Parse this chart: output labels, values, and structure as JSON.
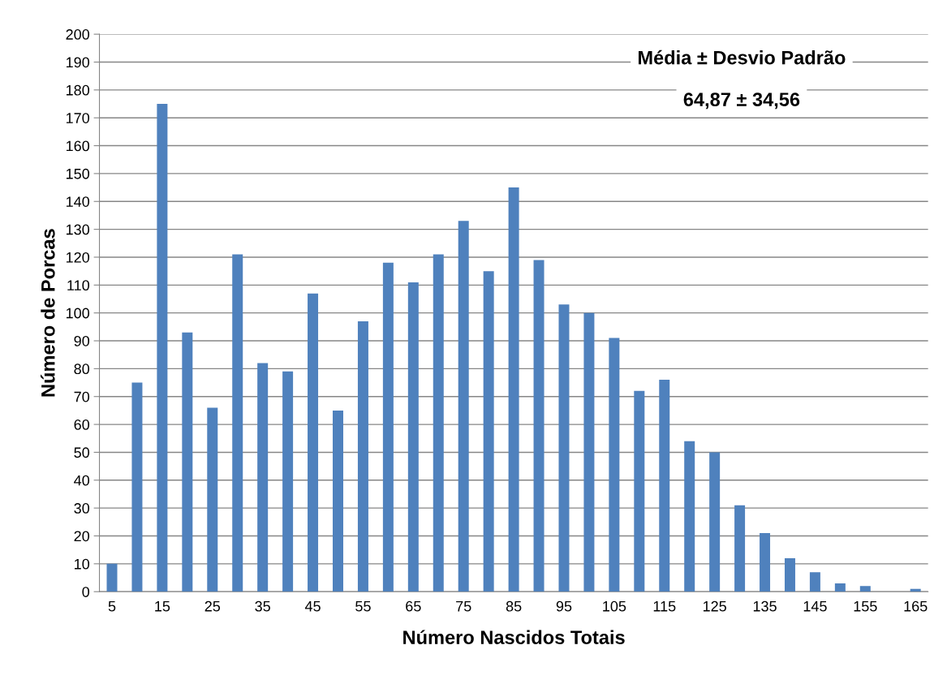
{
  "chart_data": {
    "type": "bar",
    "xlabel": "Número Nascidos Totais",
    "ylabel": "Número de Porcas",
    "categories": [
      "5",
      null,
      "15",
      null,
      "25",
      null,
      "35",
      null,
      "45",
      null,
      "55",
      null,
      "65",
      null,
      "75",
      null,
      "85",
      null,
      "95",
      null,
      "105",
      null,
      "115",
      null,
      "125",
      null,
      "135",
      null,
      "145",
      null,
      "155",
      null,
      "165"
    ],
    "values": [
      10,
      75,
      175,
      93,
      66,
      121,
      82,
      79,
      107,
      65,
      97,
      118,
      111,
      121,
      133,
      115,
      145,
      119,
      103,
      100,
      91,
      72,
      76,
      54,
      50,
      31,
      21,
      12,
      7,
      3,
      2,
      0,
      1
    ],
    "color": "#4f81bd",
    "ylim": [
      0,
      200
    ],
    "yticks": [
      0,
      10,
      20,
      30,
      40,
      50,
      60,
      70,
      80,
      90,
      100,
      110,
      120,
      130,
      140,
      150,
      160,
      170,
      180,
      190,
      200
    ],
    "grid": "y",
    "legend": false,
    "annotations": [
      "Média ± Desvio Padrão",
      "64,87 ± 34,56"
    ]
  }
}
